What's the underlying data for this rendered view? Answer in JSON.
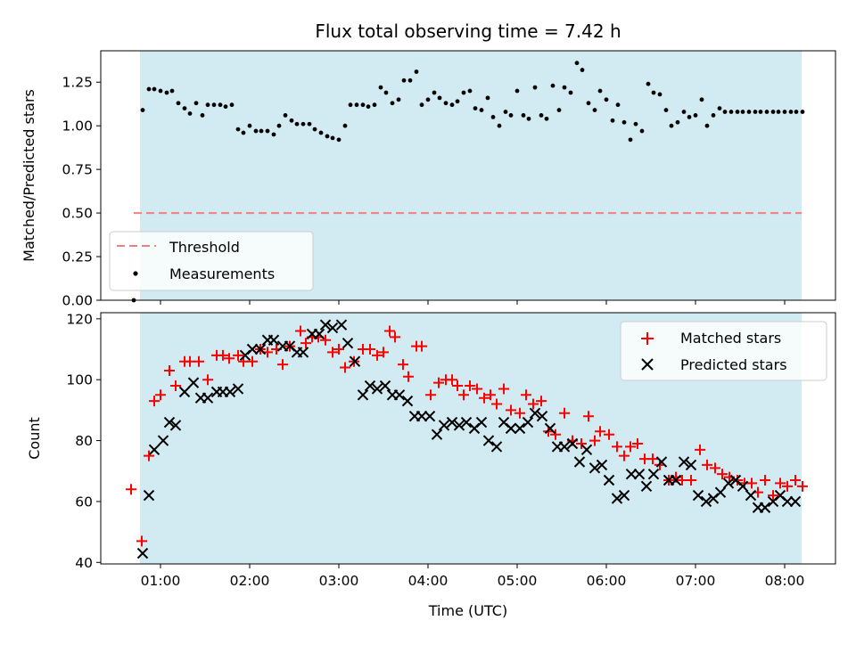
{
  "chart_data": [
    {
      "type": "scatter",
      "title": "Flux total observing time = 7.42 h",
      "xlabel": "",
      "ylabel": "Matched/Predicted stars",
      "ylim": [
        0,
        1.43
      ],
      "xlim_hours": [
        0.33,
        8.57
      ],
      "yticks": [
        "0.00",
        "0.25",
        "0.50",
        "0.75",
        "1.00",
        "1.25"
      ],
      "ytick_values": [
        0,
        0.25,
        0.5,
        0.75,
        1.0,
        1.25
      ],
      "shaded_span_hours": [
        0.77,
        8.19
      ],
      "shade_color": "#add8e6",
      "threshold": {
        "name": "Threshold",
        "value": 0.5,
        "x_start": 0.7,
        "x_end": 8.19,
        "color": "#f08080"
      },
      "measurements": {
        "name": "Measurements",
        "color": "#000000",
        "x": [
          0.7,
          0.8,
          0.87,
          0.93,
          1.0,
          1.07,
          1.13,
          1.2,
          1.27,
          1.33,
          1.4,
          1.47,
          1.53,
          1.6,
          1.67,
          1.73,
          1.8,
          1.87,
          1.93,
          2.0,
          2.07,
          2.13,
          2.2,
          2.27,
          2.33,
          2.4,
          2.47,
          2.53,
          2.6,
          2.67,
          2.73,
          2.8,
          2.87,
          2.93,
          3.0,
          3.07,
          3.13,
          3.2,
          3.27,
          3.33,
          3.4,
          3.47,
          3.53,
          3.6,
          3.67,
          3.73,
          3.8,
          3.87,
          3.93,
          4.0,
          4.07,
          4.13,
          4.2,
          4.27,
          4.33,
          4.4,
          4.47,
          4.53,
          4.6,
          4.67,
          4.73,
          4.8,
          4.87,
          4.93,
          5.0,
          5.07,
          5.13,
          5.2,
          5.27,
          5.33,
          5.4,
          5.47,
          5.53,
          5.6,
          5.67,
          5.73,
          5.8,
          5.87,
          5.93,
          6.0,
          6.07,
          6.13,
          6.2,
          6.27,
          6.33,
          6.4,
          6.47,
          6.53,
          6.6,
          6.67,
          6.73,
          6.8,
          6.87,
          6.93,
          7.0,
          7.07,
          7.13,
          7.2,
          7.27,
          7.33,
          7.4,
          7.47,
          7.53,
          7.6,
          7.67,
          7.73,
          7.8,
          7.87,
          7.93,
          8.0,
          8.07,
          8.13,
          8.2
        ],
        "y": [
          0.0,
          1.09,
          1.21,
          1.21,
          1.2,
          1.19,
          1.2,
          1.13,
          1.1,
          1.07,
          1.13,
          1.06,
          1.12,
          1.12,
          1.12,
          1.11,
          1.12,
          0.98,
          0.96,
          1.0,
          0.97,
          0.97,
          0.97,
          0.95,
          1.0,
          1.06,
          1.03,
          1.01,
          1.01,
          1.01,
          0.98,
          0.96,
          0.94,
          0.93,
          0.92,
          1.0,
          1.12,
          1.12,
          1.12,
          1.11,
          1.12,
          1.22,
          1.19,
          1.13,
          1.15,
          1.26,
          1.26,
          1.31,
          1.12,
          1.15,
          1.19,
          1.16,
          1.13,
          1.12,
          1.14,
          1.19,
          1.2,
          1.1,
          1.09,
          1.16,
          1.05,
          1.0,
          1.08,
          1.06,
          1.2,
          1.06,
          1.04,
          1.22,
          1.06,
          1.04,
          1.23,
          1.09,
          1.22,
          1.19,
          1.36,
          1.32,
          1.13,
          1.09,
          1.2,
          1.15,
          1.03,
          1.12,
          1.02,
          0.92,
          1.01,
          0.97,
          1.24,
          1.19,
          1.18,
          1.09,
          1.0,
          1.02,
          1.08,
          1.05,
          1.06,
          1.15,
          1.0,
          1.06,
          1.1,
          1.08,
          1.08,
          1.08,
          1.08,
          1.08,
          1.08,
          1.08,
          1.08,
          1.08,
          1.08,
          1.08,
          1.08,
          1.08,
          1.08
        ]
      },
      "legend": {
        "placement": "lower-left",
        "entries": [
          "Threshold",
          "Measurements"
        ]
      }
    },
    {
      "type": "scatter",
      "title": "",
      "xlabel": "Time (UTC)",
      "ylabel": "Count",
      "ylim": [
        39.5,
        122
      ],
      "xlim_hours": [
        0.33,
        8.57
      ],
      "xticks": [
        "01:00",
        "02:00",
        "03:00",
        "04:00",
        "05:00",
        "06:00",
        "07:00",
        "08:00"
      ],
      "xtick_values": [
        1,
        2,
        3,
        4,
        5,
        6,
        7,
        8
      ],
      "yticks": [
        "40",
        "60",
        "80",
        "100",
        "120"
      ],
      "ytick_values": [
        40,
        60,
        80,
        100,
        120
      ],
      "shaded_span_hours": [
        0.77,
        8.19
      ],
      "shade_color": "#add8e6",
      "series": [
        {
          "name": "Matched stars",
          "marker": "plus",
          "color": "#ff0000",
          "x": [
            0.67,
            0.79,
            0.87,
            0.93,
            1.0,
            1.1,
            1.17,
            1.27,
            1.33,
            1.43,
            1.53,
            1.63,
            1.7,
            1.77,
            1.87,
            1.93,
            2.03,
            2.12,
            2.2,
            2.3,
            2.37,
            2.45,
            2.57,
            2.63,
            2.7,
            2.77,
            2.85,
            2.93,
            3.0,
            3.07,
            3.17,
            3.27,
            3.35,
            3.43,
            3.5,
            3.57,
            3.63,
            3.72,
            3.78,
            3.87,
            3.93,
            4.03,
            4.12,
            4.2,
            4.27,
            4.33,
            4.4,
            4.47,
            4.55,
            4.63,
            4.7,
            4.77,
            4.85,
            4.93,
            5.03,
            5.1,
            5.18,
            5.27,
            5.35,
            5.43,
            5.53,
            5.62,
            5.72,
            5.8,
            5.87,
            5.93,
            6.03,
            6.12,
            6.2,
            6.27,
            6.35,
            6.43,
            6.52,
            6.6,
            6.7,
            6.78,
            6.85,
            6.95,
            7.05,
            7.13,
            7.22,
            7.3,
            7.38,
            7.47,
            7.55,
            7.63,
            7.7,
            7.78,
            7.87,
            7.95,
            8.03,
            8.12,
            8.2
          ],
          "y": [
            64,
            47,
            75,
            93,
            95,
            103,
            98,
            106,
            106,
            106,
            100,
            108,
            108,
            107,
            108,
            106,
            106,
            110,
            109,
            110,
            105,
            111,
            116,
            112,
            114,
            114,
            113,
            109,
            110,
            104,
            106,
            110,
            110,
            108,
            109,
            116,
            114,
            105,
            101,
            111,
            111,
            95,
            99,
            100,
            100,
            98,
            95,
            98,
            97,
            94,
            95,
            92,
            97,
            90,
            89,
            95,
            92,
            93,
            83,
            82,
            89,
            80,
            79,
            88,
            80,
            83,
            82,
            78,
            75,
            78,
            79,
            74,
            74,
            72,
            67,
            68,
            67,
            67,
            77,
            72,
            71,
            69,
            68,
            67,
            66,
            66,
            63,
            67,
            62,
            66,
            65,
            67,
            65
          ]
        },
        {
          "name": "Predicted stars",
          "marker": "x",
          "color": "#000000",
          "x": [
            0.8,
            0.87,
            0.93,
            1.03,
            1.1,
            1.17,
            1.27,
            1.37,
            1.45,
            1.53,
            1.63,
            1.7,
            1.78,
            1.87,
            1.95,
            2.03,
            2.12,
            2.2,
            2.27,
            2.37,
            2.45,
            2.53,
            2.6,
            2.7,
            2.78,
            2.85,
            2.93,
            3.03,
            3.1,
            3.18,
            3.27,
            3.35,
            3.43,
            3.52,
            3.6,
            3.68,
            3.77,
            3.85,
            3.93,
            4.02,
            4.1,
            4.18,
            4.27,
            4.35,
            4.43,
            4.52,
            4.6,
            4.68,
            4.77,
            4.85,
            4.93,
            5.03,
            5.12,
            5.2,
            5.28,
            5.37,
            5.45,
            5.53,
            5.62,
            5.7,
            5.78,
            5.87,
            5.95,
            6.03,
            6.12,
            6.2,
            6.28,
            6.37,
            6.45,
            6.53,
            6.62,
            6.7,
            6.78,
            6.87,
            6.95,
            7.03,
            7.12,
            7.2,
            7.28,
            7.37,
            7.45,
            7.53,
            7.62,
            7.7,
            7.78,
            7.87,
            7.95,
            8.03,
            8.12
          ],
          "y": [
            43,
            62,
            77,
            80,
            86,
            85,
            96,
            99,
            94,
            94,
            96,
            96,
            96,
            97,
            108,
            110,
            110,
            113,
            113,
            111,
            111,
            109,
            109,
            115,
            115,
            118,
            117,
            118,
            112,
            106,
            95,
            98,
            97,
            98,
            95,
            95,
            93,
            88,
            88,
            88,
            82,
            85,
            86,
            85,
            86,
            84,
            86,
            80,
            78,
            86,
            84,
            84,
            86,
            89,
            88,
            84,
            78,
            78,
            79,
            73,
            77,
            71,
            72,
            67,
            61,
            62,
            69,
            69,
            65,
            69,
            73,
            67,
            67,
            73,
            72,
            62,
            60,
            61,
            63,
            66,
            67,
            65,
            62,
            58,
            58,
            60,
            62,
            60,
            60
          ]
        }
      ],
      "legend": {
        "placement": "top-right",
        "entries": [
          "Matched stars",
          "Predicted stars"
        ]
      }
    }
  ]
}
